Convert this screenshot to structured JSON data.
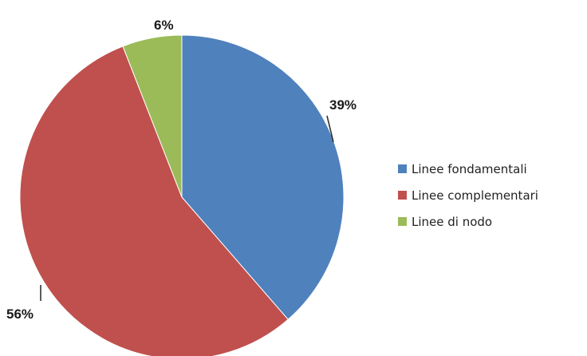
{
  "chart_data": {
    "type": "pie",
    "categories": [
      "Linee fondamentali",
      "Linee complementari",
      "Linee di nodo"
    ],
    "values": [
      39,
      56,
      6
    ],
    "data_labels": [
      "39%",
      "56%",
      "6%"
    ],
    "colors": [
      "#4F81BD",
      "#C0504D",
      "#9BBB59"
    ],
    "title": "",
    "legend_position": "right",
    "start_angle": "top",
    "direction": "clockwise"
  }
}
